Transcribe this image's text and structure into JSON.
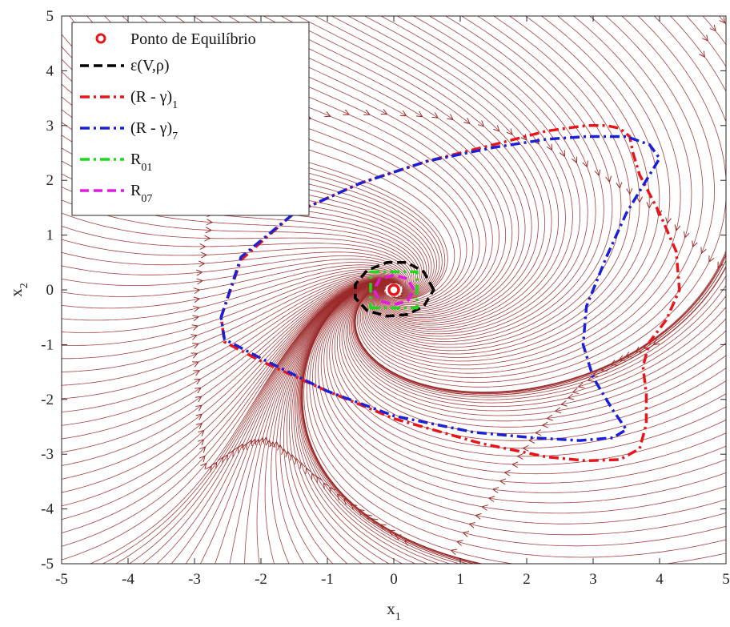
{
  "chart_data": {
    "type": "line",
    "title": "",
    "xlabel": "x",
    "xlabel_sub": "1",
    "ylabel": "x",
    "ylabel_sub": "2",
    "xlim": [
      -5,
      5
    ],
    "ylim": [
      -5,
      5
    ],
    "xticks": [
      -5,
      -4,
      -3,
      -2,
      -1,
      0,
      1,
      2,
      3,
      4,
      5
    ],
    "yticks": [
      -5,
      -4,
      -3,
      -2,
      -1,
      0,
      1,
      2,
      3,
      4,
      5
    ],
    "grid": false,
    "legend_position": "top-left",
    "background": "phase portrait streamlines (stable equilibrium at origin)",
    "streamline_color": "#9b2a2a",
    "equilibrium_point": {
      "label": "Ponto de Equilíbrio",
      "x": 0,
      "y": 0,
      "color": "#e8161b"
    },
    "series": [
      {
        "name": "ε(V,ρ)",
        "name_sub": "",
        "color": "#000000",
        "style": "dashed",
        "x": [
          0.6,
          0.45,
          0.2,
          -0.1,
          -0.4,
          -0.58,
          -0.58,
          -0.4,
          -0.1,
          0.2,
          0.45,
          0.6
        ],
        "y": [
          0.0,
          0.33,
          0.5,
          0.5,
          0.36,
          0.1,
          -0.15,
          -0.38,
          -0.48,
          -0.45,
          -0.3,
          0.0
        ]
      },
      {
        "name": "(R - γ)",
        "name_sub": "1",
        "color": "#e8161b",
        "style": "dashdot",
        "x": [
          -2.6,
          -2.3,
          -1.5,
          -0.5,
          0.5,
          1.5,
          2.3,
          2.9,
          3.2,
          3.4,
          3.55,
          3.6,
          3.7,
          4.0,
          4.25,
          4.3,
          4.1,
          3.85,
          3.75,
          3.8,
          3.8,
          3.7,
          3.4,
          2.9,
          2.3,
          1.3,
          0.0,
          -1.0,
          -2.0,
          -2.55,
          -2.6
        ],
        "y": [
          -0.5,
          0.55,
          1.4,
          1.95,
          2.35,
          2.65,
          2.9,
          3.0,
          3.0,
          2.95,
          2.8,
          2.5,
          2.1,
          1.4,
          0.7,
          0.0,
          -0.55,
          -0.95,
          -1.4,
          -1.9,
          -2.45,
          -2.9,
          -3.1,
          -3.12,
          -3.05,
          -2.8,
          -2.35,
          -1.85,
          -1.3,
          -0.95,
          -0.5
        ]
      },
      {
        "name": "(R - γ)",
        "name_sub": "7",
        "color": "#1b22d6",
        "style": "dashdot",
        "x": [
          -2.6,
          -2.3,
          -1.5,
          -0.5,
          0.5,
          1.5,
          2.3,
          2.9,
          3.5,
          3.85,
          4.0,
          3.8,
          3.5,
          3.2,
          2.9,
          2.85,
          3.0,
          3.3,
          3.5,
          3.3,
          2.8,
          2.1,
          1.2,
          0.0,
          -1.0,
          -2.0,
          -2.55,
          -2.6
        ],
        "y": [
          -0.5,
          0.6,
          1.4,
          1.95,
          2.35,
          2.6,
          2.75,
          2.8,
          2.8,
          2.65,
          2.4,
          2.0,
          1.4,
          0.6,
          -0.3,
          -1.0,
          -1.6,
          -2.2,
          -2.55,
          -2.7,
          -2.75,
          -2.7,
          -2.6,
          -2.3,
          -1.85,
          -1.25,
          -0.9,
          -0.5
        ]
      },
      {
        "name": "R",
        "name_sub": "01",
        "color": "#1adb1a",
        "style": "dashdot",
        "x": [
          -0.35,
          0.35,
          0.35,
          -0.35,
          -0.35
        ],
        "y": [
          -0.33,
          -0.33,
          0.33,
          0.33,
          -0.33
        ]
      },
      {
        "name": "R",
        "name_sub": "07",
        "color": "#e31ae3",
        "style": "dashed",
        "x": [
          0.3,
          0.21,
          0.0,
          -0.21,
          -0.3,
          -0.21,
          0.0,
          0.21,
          0.3
        ],
        "y": [
          0.0,
          0.2,
          0.27,
          0.2,
          0.0,
          -0.2,
          -0.27,
          -0.2,
          0.0
        ]
      }
    ]
  }
}
